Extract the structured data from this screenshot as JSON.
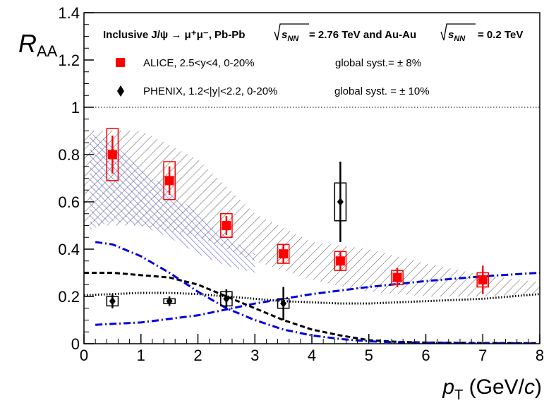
{
  "chart_data": {
    "type": "scatter",
    "title_parts": {
      "reaction": "Inclusive J/ψ → μ⁺μ⁻, Pb-Pb",
      "sqrt_label": "s",
      "sqrt_sub": "NN",
      "energy_pbpb": "= 2.76 TeV and Au-Au",
      "energy_auau": "= 0.2 TeV"
    },
    "ylabel": "R",
    "ylabel_sub": "AA",
    "xlabel": "p",
    "xlabel_sub": "T",
    "xlabel_units_a": " (GeV/",
    "xlabel_units_c": "c",
    "xlabel_units_b": ")",
    "xlim": [
      0,
      8
    ],
    "ylim": [
      0,
      1.4
    ],
    "xticks": [
      0,
      1,
      2,
      3,
      4,
      5,
      6,
      7,
      8
    ],
    "xtick_labels": [
      "0",
      "1",
      "2",
      "3",
      "4",
      "5",
      "6",
      "7",
      "8"
    ],
    "yticks": [
      0,
      0.2,
      0.4,
      0.6,
      0.8,
      1,
      1.2,
      1.4
    ],
    "ytick_labels": [
      "0",
      "0.2",
      "0.4",
      "0.6",
      "0.8",
      "1",
      "1.2",
      "1.4"
    ],
    "reference_line": 1,
    "legend": [
      {
        "name": "ALICE",
        "label": "ALICE, 2.5<y<4, 0-20%",
        "syst": "global syst.= ± 8%",
        "marker": "square",
        "color": "#ff0000"
      },
      {
        "name": "PHENIX",
        "label": "PHENIX, 1.2<|y|<2.2, 0-20%",
        "syst": "global syst. = ± 10%",
        "marker": "diamond",
        "color": "#000000"
      }
    ],
    "series": [
      {
        "name": "ALICE",
        "x": [
          0.5,
          1.5,
          2.5,
          3.5,
          4.5,
          5.5,
          7.0
        ],
        "y": [
          0.8,
          0.69,
          0.5,
          0.38,
          0.35,
          0.28,
          0.27
        ],
        "stat_err": [
          0.08,
          0.06,
          0.04,
          0.04,
          0.04,
          0.04,
          0.06
        ],
        "sys_err": [
          0.11,
          0.08,
          0.05,
          0.04,
          0.04,
          0.03,
          0.03
        ],
        "box_halfwidth": 0.1
      },
      {
        "name": "PHENIX",
        "x": [
          0.5,
          1.5,
          2.5,
          3.5,
          4.5
        ],
        "y": [
          0.18,
          0.18,
          0.19,
          0.17,
          0.6
        ],
        "stat_err": [
          0.03,
          0.02,
          0.04,
          0.07,
          0.17
        ],
        "sys_err": [
          0.02,
          0.01,
          0.03,
          0.02,
          0.08
        ],
        "box_halfwidth": 0.1
      }
    ],
    "model_bands": [
      {
        "name": "model-band-lhc",
        "style": "hatch-diagonal",
        "x": [
          0,
          1,
          2,
          3,
          4,
          5,
          6,
          7,
          8
        ],
        "upper": [
          0.9,
          0.9,
          0.78,
          0.55,
          0.43,
          0.4,
          0.34,
          0.29,
          0.26
        ],
        "lower": [
          0.5,
          0.5,
          0.45,
          0.35,
          0.27,
          0.22,
          0.2,
          0.2,
          0.21
        ]
      },
      {
        "name": "model-band-lhc-crosshatch",
        "style": "hatch-cross",
        "x": [
          0.1,
          0.5,
          1,
          1.5,
          2,
          2.5,
          3
        ],
        "upper": [
          0.89,
          0.85,
          0.74,
          0.65,
          0.55,
          0.45,
          0.38
        ],
        "lower": [
          0.48,
          0.52,
          0.5,
          0.45,
          0.38,
          0.33,
          0.3
        ]
      }
    ],
    "model_curves": [
      {
        "name": "curve-black-dashed",
        "style": "dashed",
        "color": "#000000",
        "x": [
          0,
          0.5,
          1,
          1.5,
          2,
          2.5,
          3,
          3.5,
          4,
          4.5,
          5,
          5.5,
          6,
          7,
          8
        ],
        "y": [
          0.3,
          0.3,
          0.29,
          0.28,
          0.25,
          0.2,
          0.15,
          0.1,
          0.06,
          0.035,
          0.015,
          0.008,
          0.005,
          0.003,
          0.002
        ]
      },
      {
        "name": "curve-black-dotted",
        "style": "dotted",
        "color": "#000000",
        "x": [
          0,
          0.5,
          1,
          1.5,
          2,
          2.5,
          3,
          3.5,
          4,
          4.5,
          5,
          6,
          7,
          8
        ],
        "y": [
          0.205,
          0.21,
          0.215,
          0.215,
          0.21,
          0.2,
          0.19,
          0.18,
          0.175,
          0.17,
          0.17,
          0.18,
          0.19,
          0.21
        ]
      },
      {
        "name": "curve-blue-dashdot-falling",
        "style": "dashdot",
        "color": "#0000dd",
        "x": [
          0.2,
          0.5,
          1,
          1.5,
          2,
          2.5,
          3,
          3.5,
          4,
          4.5,
          5,
          5.5,
          6,
          7,
          8
        ],
        "y": [
          0.43,
          0.42,
          0.37,
          0.3,
          0.22,
          0.15,
          0.1,
          0.06,
          0.035,
          0.02,
          0.01,
          0.006,
          0.004,
          0.002,
          0.001
        ]
      },
      {
        "name": "curve-blue-dashdot-rising",
        "style": "dashdot",
        "color": "#0000dd",
        "x": [
          0.2,
          1,
          2,
          3,
          4,
          5,
          6,
          7,
          8
        ],
        "y": [
          0.08,
          0.09,
          0.12,
          0.17,
          0.21,
          0.24,
          0.265,
          0.285,
          0.3
        ]
      }
    ]
  }
}
